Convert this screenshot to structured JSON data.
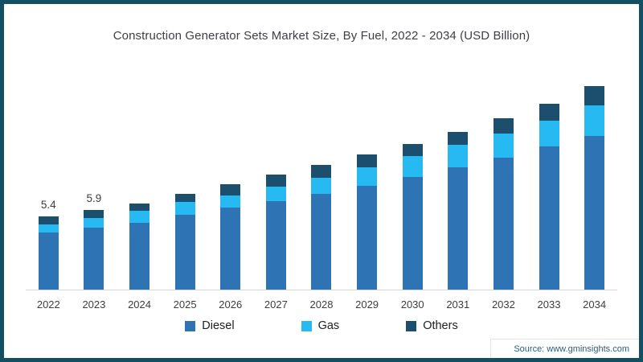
{
  "chart_data": {
    "type": "bar",
    "stacked": true,
    "title": "Construction Generator Sets Market Size, By Fuel, 2022 - 2034 (USD Billion)",
    "unit": "USD Billion",
    "categories": [
      "2022",
      "2023",
      "2024",
      "2025",
      "2026",
      "2027",
      "2028",
      "2029",
      "2030",
      "2031",
      "2032",
      "2033",
      "2034"
    ],
    "series": [
      {
        "name": "Diesel",
        "color": "#2e74b5",
        "values": [
          4.25,
          4.6,
          4.95,
          5.55,
          6.1,
          6.55,
          7.1,
          7.7,
          8.35,
          9.05,
          9.75,
          10.6,
          11.4
        ]
      },
      {
        "name": "Gas",
        "color": "#27b9f2",
        "values": [
          0.6,
          0.7,
          0.9,
          0.95,
          0.85,
          1.1,
          1.2,
          1.35,
          1.55,
          1.65,
          1.8,
          1.9,
          2.25
        ]
      },
      {
        "name": "Others",
        "color": "#1c4f6e",
        "values": [
          0.55,
          0.6,
          0.55,
          0.6,
          0.85,
          0.85,
          0.9,
          0.95,
          0.9,
          1.0,
          1.15,
          1.25,
          1.4
        ]
      }
    ],
    "bar_total_labels": {
      "2022": "5.4",
      "2023": "5.9"
    },
    "totals": [
      5.4,
      5.9,
      6.4,
      7.1,
      7.8,
      8.5,
      9.2,
      10.0,
      10.8,
      11.7,
      12.7,
      13.75,
      15.05
    ],
    "ylim": [
      0,
      15.2
    ],
    "grid": false,
    "y_axis_visible": false,
    "legend_position": "bottom",
    "axis_line_color": "#d6d6d6"
  },
  "source": {
    "label": "Source: www.gminsights.com"
  },
  "frame": {
    "border_color": "#134f63",
    "background": "#ffffff"
  }
}
